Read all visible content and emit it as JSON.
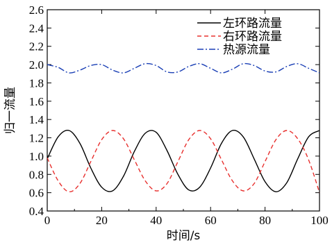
{
  "chart_data": {
    "type": "line",
    "title": "",
    "xlabel": "时间/s",
    "ylabel": "归一流量",
    "xlim": [
      0,
      100
    ],
    "ylim": [
      0.4,
      2.6
    ],
    "grid": false,
    "legend_position": "top-right",
    "x_ticks": [
      "0",
      "20",
      "40",
      "60",
      "80",
      "100"
    ],
    "y_ticks": [
      "0.4",
      "0.6",
      "0.8",
      "1.0",
      "1.2",
      "1.4",
      "1.6",
      "1.8",
      "2.0",
      "2.2",
      "2.4",
      "2.6"
    ],
    "series": [
      {
        "name": "左环路流量",
        "color": "#000000",
        "dash": "solid",
        "x": [
          0,
          4,
          8,
          12,
          16,
          20,
          24,
          28,
          32,
          36,
          40,
          44,
          48,
          52,
          56,
          60,
          64,
          68,
          72,
          76,
          80,
          84,
          88,
          92,
          96,
          100
        ],
        "y": [
          0.97,
          1.21,
          1.28,
          1.14,
          0.87,
          0.66,
          0.62,
          0.78,
          1.05,
          1.25,
          1.26,
          1.06,
          0.8,
          0.63,
          0.66,
          0.87,
          1.14,
          1.28,
          1.21,
          0.97,
          0.72,
          0.61,
          0.71,
          0.97,
          1.21,
          1.28
        ]
      },
      {
        "name": "右环路流量",
        "color": "#e8302e",
        "dash": "dashed",
        "x": [
          0,
          4,
          8,
          12,
          16,
          20,
          24,
          28,
          32,
          36,
          40,
          44,
          48,
          52,
          56,
          60,
          64,
          68,
          72,
          76,
          80,
          84,
          88,
          92,
          96,
          100
        ],
        "y": [
          0.98,
          0.73,
          0.61,
          0.7,
          0.94,
          1.18,
          1.28,
          1.19,
          0.96,
          0.73,
          0.62,
          0.7,
          0.94,
          1.18,
          1.28,
          1.19,
          0.96,
          0.73,
          0.62,
          0.7,
          0.94,
          1.18,
          1.28,
          1.19,
          0.96,
          0.6
        ]
      },
      {
        "name": "热源流量",
        "color": "#1a3fb5",
        "dash": "dashdot",
        "x": [
          0,
          4,
          8,
          12,
          16,
          20,
          24,
          28,
          32,
          36,
          40,
          44,
          48,
          52,
          56,
          60,
          64,
          68,
          72,
          76,
          80,
          84,
          88,
          92,
          96,
          100
        ],
        "y": [
          2.0,
          1.97,
          1.91,
          1.94,
          1.99,
          2.0,
          1.94,
          1.91,
          1.96,
          2.01,
          1.99,
          1.92,
          1.92,
          1.98,
          2.01,
          1.96,
          1.91,
          1.95,
          2.01,
          1.99,
          1.93,
          1.92,
          1.98,
          2.01,
          1.96,
          1.91
        ]
      }
    ]
  }
}
